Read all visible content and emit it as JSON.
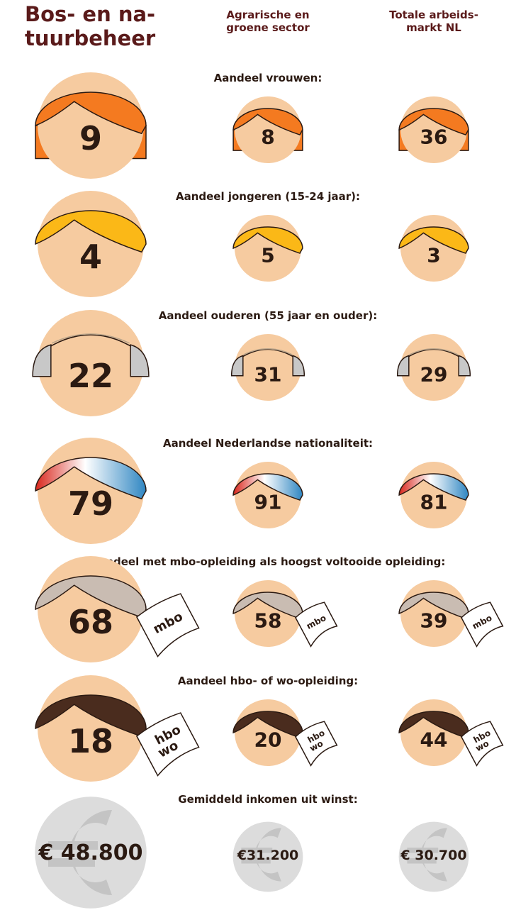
{
  "header": {
    "title": [
      "Bos- en na-",
      "tuurbeheer"
    ],
    "columns": [
      [
        "Agrarische en",
        "groene sector"
      ],
      [
        "Totale arbeids-",
        "markt NL"
      ]
    ]
  },
  "rows": [
    {
      "label": "Aandeel vrouwen:",
      "values": [
        9,
        8,
        36
      ]
    },
    {
      "label": "Aandeel jongeren (15-24 jaar):",
      "values": [
        4,
        5,
        3
      ]
    },
    {
      "label": "Aandeel ouderen (55 jaar en ouder):",
      "values": [
        22,
        31,
        29
      ]
    },
    {
      "label": "Aandeel Nederlandse nationaliteit:",
      "values": [
        79,
        91,
        81
      ]
    },
    {
      "label": "Aandeel met mbo-opleiding als hoogst voltooide opleiding:",
      "values": [
        68,
        58,
        39
      ],
      "paper": [
        "mbo"
      ]
    },
    {
      "label": "Aandeel hbo- of wo-opleiding:",
      "values": [
        18,
        20,
        44
      ],
      "paper": [
        "hbo",
        "wo"
      ]
    },
    {
      "label": "Gemiddeld inkomen uit winst:",
      "values": [
        "€ 48.800",
        "€31.200",
        "€ 30.700"
      ]
    }
  ]
}
